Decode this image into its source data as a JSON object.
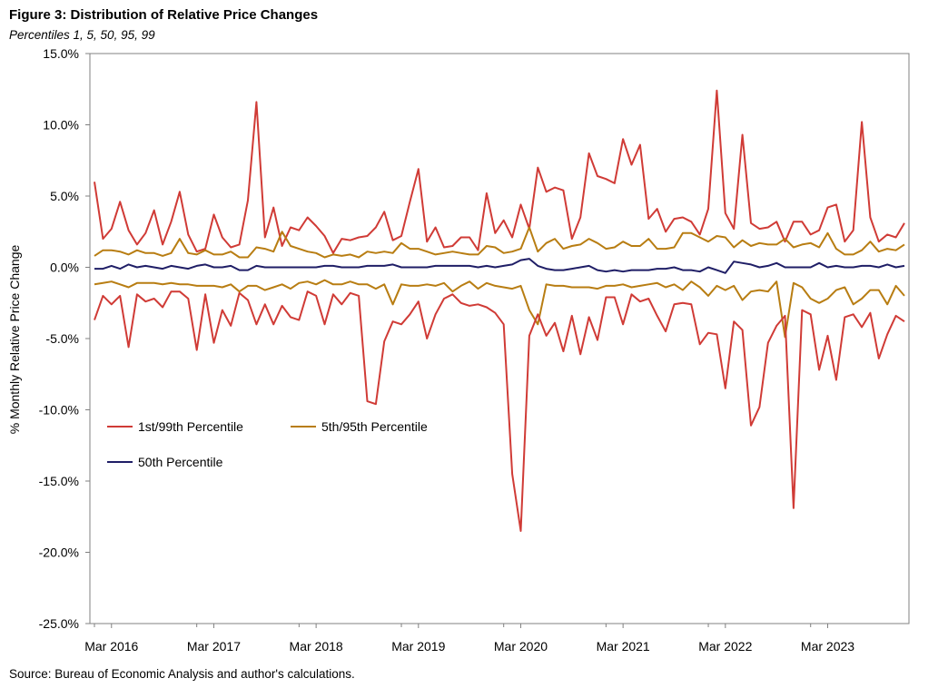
{
  "figure": {
    "title": "Figure 3: Distribution of Relative Price Changes",
    "subtitle": "Percentiles 1, 5, 50, 95, 99",
    "source": "Source: Bureau of Economic Analysis and author's calculations."
  },
  "colors": {
    "p1_99": "#d03b36",
    "p5_95": "#b87d12",
    "p50": "#1f1e66",
    "axis": "#808080"
  },
  "chart_data": {
    "type": "line",
    "ylabel": "% Monthly Relative Price Change",
    "ylim": [
      -25,
      15
    ],
    "yticks": [
      15,
      10,
      5,
      0,
      -5,
      -10,
      -15,
      -20,
      -25
    ],
    "ytick_labels": [
      "15.0%",
      "10.0%",
      "5.0%",
      "0.0%",
      "-5.0%",
      "-10.0%",
      "-15.0%",
      "-20.0%",
      "-25.0%"
    ],
    "x_start": "Jan 2016",
    "x_end": "Mar 2024",
    "xtick_labels": [
      "Mar 2016",
      "Mar 2017",
      "Mar 2018",
      "Mar 2019",
      "Mar 2020",
      "Mar 2021",
      "Mar 2022",
      "Mar 2023"
    ],
    "grid": false,
    "legend_position": "lower-left",
    "legend": [
      "1st/99th Percentile",
      "5th/95th Percentile",
      "50th Percentile"
    ],
    "series": [
      {
        "name": "99th Percentile",
        "group": "1st/99th Percentile",
        "values": [
          6.0,
          2.0,
          2.7,
          4.6,
          2.6,
          1.6,
          2.4,
          4.0,
          1.6,
          3.2,
          5.3,
          2.3,
          1.1,
          1.3,
          3.7,
          2.1,
          1.4,
          1.6,
          4.7,
          11.6,
          2.1,
          4.2,
          1.5,
          2.8,
          2.6,
          3.5,
          2.9,
          2.2,
          1.0,
          2.0,
          1.9,
          2.1,
          2.2,
          2.8,
          3.9,
          1.9,
          2.2,
          4.6,
          6.9,
          1.8,
          2.8,
          1.4,
          1.5,
          2.1,
          2.1,
          1.2,
          5.2,
          2.4,
          3.3,
          2.1,
          4.4,
          2.7,
          7.0,
          5.3,
          5.6,
          5.4,
          2.0,
          3.5,
          8.0,
          6.4,
          6.2,
          5.9,
          9.0,
          7.2,
          8.6,
          3.4,
          4.1,
          2.5,
          3.4,
          3.5,
          3.2,
          2.3,
          4.1,
          12.4,
          3.8,
          2.7,
          9.3,
          3.1,
          2.7,
          2.8,
          3.2,
          1.8,
          3.2,
          3.2,
          2.3,
          2.6,
          4.2,
          4.4,
          1.8,
          2.6,
          10.2,
          3.5,
          1.8,
          2.3,
          2.1,
          3.1
        ]
      },
      {
        "name": "95th Percentile",
        "group": "5th/95th Percentile",
        "values": [
          0.8,
          1.2,
          1.2,
          1.1,
          0.9,
          1.2,
          1.0,
          1.0,
          0.8,
          1.0,
          2.0,
          1.0,
          0.9,
          1.2,
          0.9,
          0.9,
          1.1,
          0.7,
          0.7,
          1.4,
          1.3,
          1.1,
          2.5,
          1.5,
          1.3,
          1.1,
          1.0,
          0.7,
          0.9,
          0.8,
          0.9,
          0.7,
          1.1,
          1.0,
          1.1,
          1.0,
          1.7,
          1.3,
          1.3,
          1.1,
          0.9,
          1.0,
          1.1,
          1.0,
          0.9,
          0.9,
          1.5,
          1.4,
          1.0,
          1.1,
          1.3,
          2.8,
          1.1,
          1.7,
          2.0,
          1.3,
          1.5,
          1.6,
          2.0,
          1.7,
          1.3,
          1.4,
          1.8,
          1.5,
          1.5,
          2.0,
          1.3,
          1.3,
          1.4,
          2.4,
          2.4,
          2.1,
          1.8,
          2.2,
          2.1,
          1.4,
          1.9,
          1.5,
          1.7,
          1.6,
          1.6,
          2.0,
          1.4,
          1.6,
          1.7,
          1.4,
          2.4,
          1.3,
          0.9,
          0.9,
          1.2,
          1.8,
          1.1,
          1.3,
          1.2,
          1.6
        ]
      },
      {
        "name": "50th Percentile",
        "group": "50th Percentile",
        "values": [
          -0.1,
          -0.1,
          0.1,
          -0.1,
          0.2,
          0.0,
          0.1,
          0.0,
          -0.1,
          0.1,
          0.0,
          -0.1,
          0.1,
          0.2,
          0.0,
          0.0,
          0.1,
          -0.2,
          -0.2,
          0.1,
          0.0,
          0.0,
          0.0,
          0.0,
          0.0,
          0.0,
          0.0,
          0.1,
          0.1,
          0.0,
          0.0,
          0.0,
          0.1,
          0.1,
          0.1,
          0.2,
          0.0,
          0.0,
          0.0,
          0.0,
          0.1,
          0.1,
          0.1,
          0.1,
          0.1,
          0.0,
          0.1,
          0.0,
          0.1,
          0.2,
          0.5,
          0.6,
          0.1,
          -0.1,
          -0.2,
          -0.2,
          -0.1,
          0.0,
          0.1,
          -0.2,
          -0.3,
          -0.2,
          -0.3,
          -0.2,
          -0.2,
          -0.2,
          -0.1,
          -0.1,
          0.0,
          -0.2,
          -0.2,
          -0.3,
          0.0,
          -0.2,
          -0.4,
          0.4,
          0.3,
          0.2,
          0.0,
          0.1,
          0.3,
          0.0,
          0.0,
          0.0,
          0.0,
          0.3,
          0.0,
          0.1,
          0.0,
          0.0,
          0.1,
          0.1,
          0.0,
          0.2,
          0.0,
          0.1
        ]
      },
      {
        "name": "5th Percentile",
        "group": "5th/95th Percentile",
        "values": [
          -1.2,
          -1.1,
          -1.0,
          -1.2,
          -1.4,
          -1.1,
          -1.1,
          -1.1,
          -1.2,
          -1.1,
          -1.2,
          -1.2,
          -1.3,
          -1.3,
          -1.3,
          -1.4,
          -1.2,
          -1.7,
          -1.3,
          -1.3,
          -1.6,
          -1.4,
          -1.2,
          -1.5,
          -1.1,
          -1.0,
          -1.2,
          -0.9,
          -1.2,
          -1.2,
          -1.0,
          -1.2,
          -1.2,
          -1.5,
          -1.2,
          -2.6,
          -1.2,
          -1.3,
          -1.3,
          -1.2,
          -1.3,
          -1.1,
          -1.7,
          -1.3,
          -1.0,
          -1.5,
          -1.1,
          -1.3,
          -1.4,
          -1.5,
          -1.3,
          -3.0,
          -4.0,
          -1.2,
          -1.3,
          -1.3,
          -1.4,
          -1.4,
          -1.4,
          -1.5,
          -1.3,
          -1.3,
          -1.2,
          -1.4,
          -1.3,
          -1.2,
          -1.1,
          -1.4,
          -1.2,
          -1.6,
          -1.0,
          -1.4,
          -2.0,
          -1.3,
          -1.6,
          -1.3,
          -2.3,
          -1.7,
          -1.6,
          -1.7,
          -1.0,
          -4.9,
          -1.1,
          -1.4,
          -2.2,
          -2.5,
          -2.2,
          -1.6,
          -1.4,
          -2.6,
          -2.2,
          -1.6,
          -1.6,
          -2.6,
          -1.3,
          -2.0
        ]
      },
      {
        "name": "1st Percentile",
        "group": "1st/99th Percentile",
        "values": [
          -3.7,
          -2.0,
          -2.6,
          -2.0,
          -5.6,
          -1.9,
          -2.4,
          -2.2,
          -2.8,
          -1.7,
          -1.7,
          -2.2,
          -5.8,
          -1.9,
          -5.3,
          -3.0,
          -4.1,
          -1.8,
          -2.3,
          -4.0,
          -2.6,
          -4.0,
          -2.7,
          -3.5,
          -3.7,
          -1.7,
          -2.0,
          -4.0,
          -1.9,
          -2.6,
          -1.8,
          -2.0,
          -9.4,
          -9.6,
          -5.2,
          -3.8,
          -4.0,
          -3.3,
          -2.4,
          -5.0,
          -3.3,
          -2.2,
          -1.9,
          -2.5,
          -2.7,
          -2.6,
          -2.8,
          -3.2,
          -4.0,
          -14.5,
          -18.5,
          -4.8,
          -3.3,
          -4.8,
          -3.9,
          -5.9,
          -3.4,
          -6.1,
          -3.5,
          -5.1,
          -2.1,
          -2.1,
          -4.0,
          -1.9,
          -2.4,
          -2.2,
          -3.4,
          -4.5,
          -2.6,
          -2.5,
          -2.6,
          -5.4,
          -4.6,
          -4.7,
          -8.5,
          -3.8,
          -4.4,
          -11.1,
          -9.8,
          -5.3,
          -4.1,
          -3.4,
          -16.9,
          -3.0,
          -3.3,
          -7.2,
          -4.8,
          -7.9,
          -3.5,
          -3.3,
          -4.2,
          -3.2,
          -6.4,
          -4.7,
          -3.4,
          -3.8
        ]
      }
    ]
  }
}
